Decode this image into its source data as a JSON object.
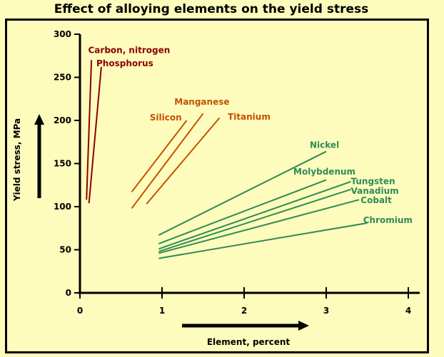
{
  "chart_data": {
    "type": "line",
    "title": "Effect of alloying elements on the yield stress",
    "xlabel": "Element, percent",
    "ylabel": "Yield stress, MPa",
    "xlim": [
      0,
      4.3
    ],
    "ylim": [
      0,
      300
    ],
    "xticks": [
      "0",
      "1",
      "2",
      "3",
      "4"
    ],
    "yticks": [
      "0",
      "50",
      "100",
      "150",
      "200",
      "250",
      "300"
    ],
    "colors": {
      "dark_red": "#8b0000",
      "orange": "#c45000",
      "green": "#2e8b57"
    },
    "series": [
      {
        "name": "Carbon, nitrogen",
        "color": "#8b0000",
        "x": [
          0.08,
          0.14
        ],
        "y": [
          108,
          270
        ],
        "label_x": 0.1,
        "label_y": 278
      },
      {
        "name": "Phosphorus",
        "color": "#8b0000",
        "x": [
          0.11,
          0.26
        ],
        "y": [
          104,
          262
        ],
        "label_x": 0.2,
        "label_y": 263
      },
      {
        "name": "Manganese",
        "color": "#c45000",
        "x": [
          0.63,
          1.5
        ],
        "y": [
          98,
          208
        ],
        "label_x": 1.15,
        "label_y": 218
      },
      {
        "name": "Silicon",
        "color": "#c45000",
        "x": [
          0.63,
          1.3
        ],
        "y": [
          117,
          200
        ],
        "label_x": 0.85,
        "label_y": 200
      },
      {
        "name": "Titanium",
        "color": "#c45000",
        "x": [
          0.81,
          1.7
        ],
        "y": [
          103,
          203
        ],
        "label_x": 1.8,
        "label_y": 201
      },
      {
        "name": "Nickel",
        "color": "#2e8b57",
        "x": [
          0.96,
          3.0
        ],
        "y": [
          67,
          164
        ],
        "label_x": 2.8,
        "label_y": 168
      },
      {
        "name": "Molybdenum",
        "color": "#2e8b57",
        "x": [
          0.96,
          3.0
        ],
        "y": [
          57,
          131
        ],
        "label_x": 2.6,
        "label_y": 137
      },
      {
        "name": "Tungsten",
        "color": "#2e8b57",
        "x": [
          0.96,
          3.3
        ],
        "y": [
          51,
          129
        ],
        "label_x": 3.3,
        "label_y": 126
      },
      {
        "name": "Vanadium",
        "color": "#2e8b57",
        "x": [
          0.96,
          3.3
        ],
        "y": [
          48,
          120
        ],
        "label_x": 3.3,
        "label_y": 115
      },
      {
        "name": "Cobalt",
        "color": "#2e8b57",
        "x": [
          0.96,
          3.4
        ],
        "y": [
          46,
          108
        ],
        "label_x": 3.42,
        "label_y": 104
      },
      {
        "name": "Chromium",
        "color": "#2e8b57",
        "x": [
          0.96,
          3.5
        ],
        "y": [
          40,
          81
        ],
        "label_x": 3.45,
        "label_y": 81
      }
    ]
  }
}
